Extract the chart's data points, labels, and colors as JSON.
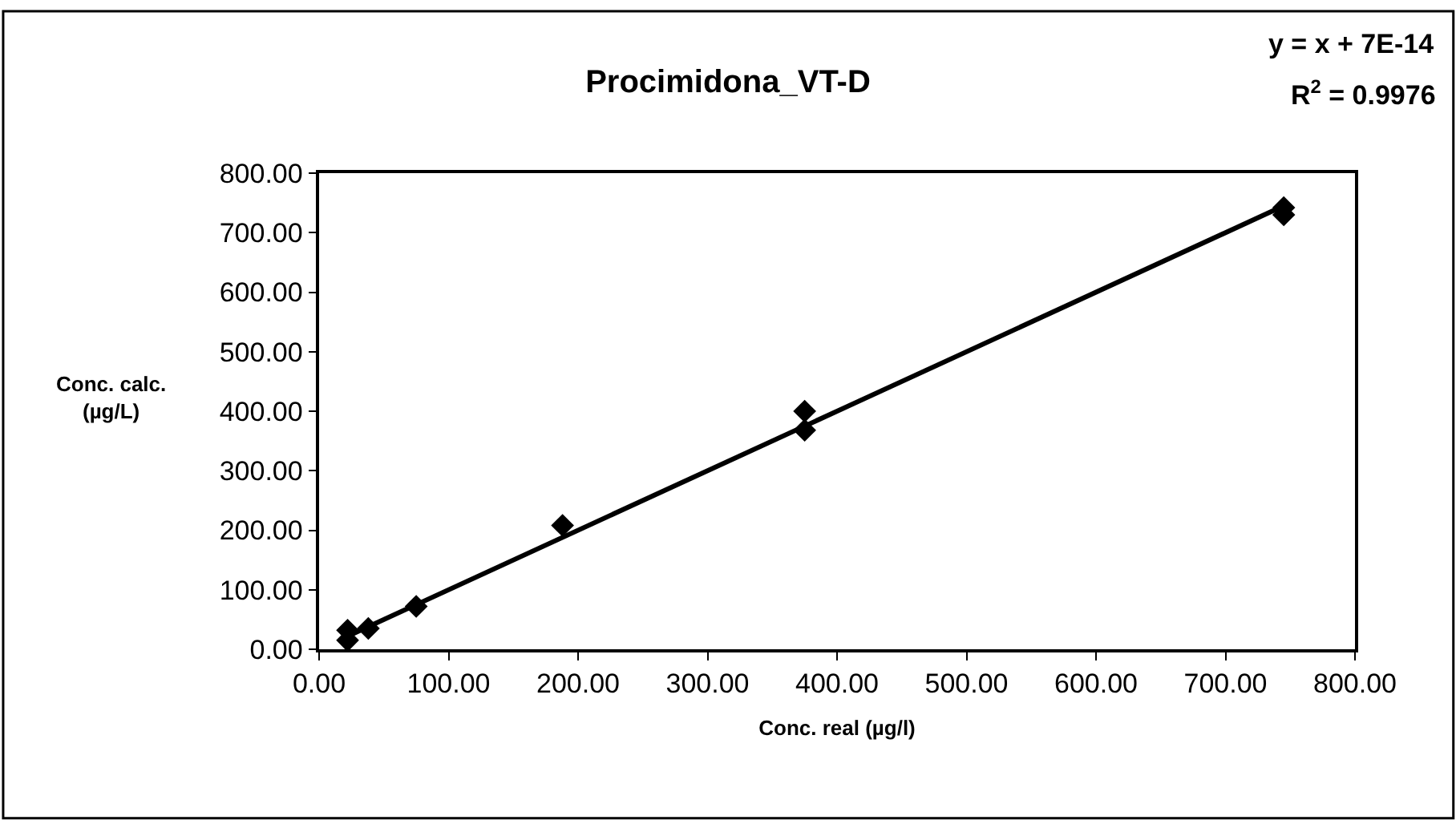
{
  "chart_data": {
    "type": "scatter",
    "title": "Procimidona_VT-D",
    "xlabel": "Conc. real (µg/l)",
    "ylabel": "Conc. calc.\n(µg/L)",
    "annotations": [
      "y = x + 7E-14",
      "R$^{2}$ = 0.9976"
    ],
    "marker": "diamond",
    "grid": false,
    "xlim": [
      0,
      800
    ],
    "ylim": [
      0,
      800
    ],
    "xticks": [
      {
        "value": 0,
        "label": "0.00"
      },
      {
        "value": 100,
        "label": "100.00"
      },
      {
        "value": 200,
        "label": "200.00"
      },
      {
        "value": 300,
        "label": "300.00"
      },
      {
        "value": 400,
        "label": "400.00"
      },
      {
        "value": 500,
        "label": "500.00"
      },
      {
        "value": 600,
        "label": "600.00"
      },
      {
        "value": 700,
        "label": "700.00"
      },
      {
        "value": 800,
        "label": "800.00"
      }
    ],
    "yticks": [
      {
        "value": 0,
        "label": "0.00"
      },
      {
        "value": 100,
        "label": "100.00"
      },
      {
        "value": 200,
        "label": "200.00"
      },
      {
        "value": 300,
        "label": "300.00"
      },
      {
        "value": 400,
        "label": "400.00"
      },
      {
        "value": 500,
        "label": "500.00"
      },
      {
        "value": 600,
        "label": "600.00"
      },
      {
        "value": 700,
        "label": "700.00"
      },
      {
        "value": 800,
        "label": "800.00"
      }
    ],
    "series": [
      {
        "color": "#000000",
        "x": [
          22,
          22,
          38,
          75,
          188,
          375,
          375,
          745,
          745
        ],
        "values": [
          15,
          32,
          35,
          72,
          208,
          368,
          400,
          730,
          742
        ]
      },
      {
        "type": "line",
        "color": "#000000",
        "marker": "none",
        "x": [
          22,
          745
        ],
        "values": [
          22,
          745
        ]
      }
    ]
  }
}
